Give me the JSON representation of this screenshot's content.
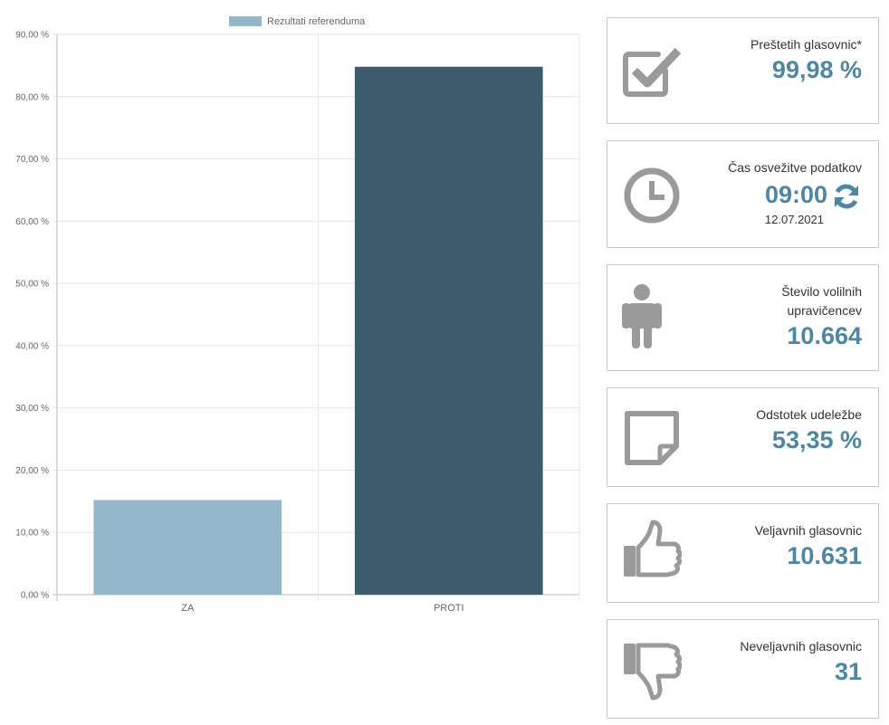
{
  "chart_data": {
    "type": "bar",
    "legend": {
      "label": "Rezultati referenduma",
      "placement": "top"
    },
    "categories": [
      "ZA",
      "PROTI"
    ],
    "series": [
      {
        "name": "Rezultati referenduma",
        "values": [
          15.2,
          84.8
        ]
      }
    ],
    "bar_colors": [
      "#94b8ca",
      "#3d5b6d"
    ],
    "legend_color": "#94b8ca",
    "ylim": [
      0,
      90
    ],
    "y_ticks": [
      0,
      10,
      20,
      30,
      40,
      50,
      60,
      70,
      80,
      90
    ],
    "y_tick_labels": [
      "0,00 %",
      "10,00 %",
      "20,00 %",
      "30,00 %",
      "40,00 %",
      "50,00 %",
      "60,00 %",
      "70,00 %",
      "80,00 %",
      "90,00 %"
    ],
    "grid": true
  },
  "stats": {
    "counted": {
      "label": "Preštetih glasovnic*",
      "value": "99,98 %"
    },
    "refresh": {
      "label": "Čas osvežitve podatkov",
      "time": "09:00",
      "date": "12.07.2021"
    },
    "voters": {
      "label_line1": "Število volilnih",
      "label_line2": "upravičencev",
      "value": "10.664"
    },
    "turnout": {
      "label": "Odstotek udeležbe",
      "value": "53,35 %"
    },
    "valid": {
      "label": "Veljavnih glasovnic",
      "value": "10.631"
    },
    "invalid": {
      "label": "Neveljavnih glasovnic",
      "value": "31"
    }
  },
  "colors": {
    "accent": "#4e87a1",
    "icon_gray": "#9a9a9a",
    "border": "#c9c9c9"
  }
}
